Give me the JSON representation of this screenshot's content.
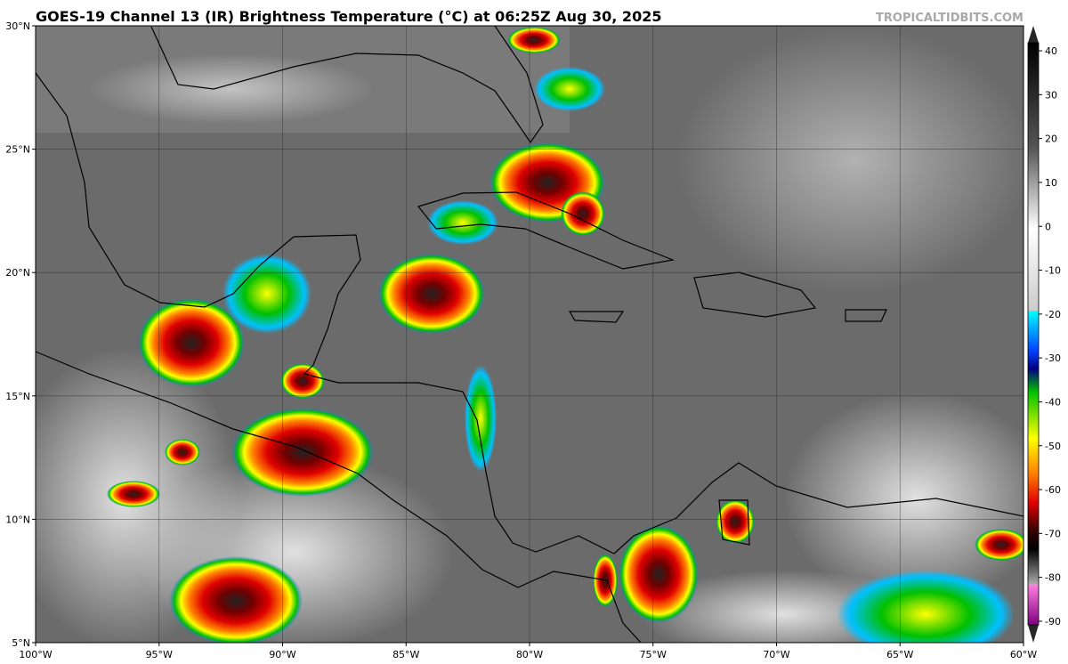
{
  "title": "GOES-19 Channel 13 (IR) Brightness Temperature (°C) at 06:25Z Aug 30, 2025",
  "watermark": "TROPICALTIDBITS.COM",
  "map": {
    "xlim": [
      -100,
      -60
    ],
    "ylim": [
      5,
      30
    ],
    "xticks": [
      {
        "value": -100,
        "label": "100°W"
      },
      {
        "value": -95,
        "label": "95°W"
      },
      {
        "value": -90,
        "label": "90°W"
      },
      {
        "value": -85,
        "label": "85°W"
      },
      {
        "value": -80,
        "label": "80°W"
      },
      {
        "value": -75,
        "label": "75°W"
      },
      {
        "value": -70,
        "label": "70°W"
      },
      {
        "value": -65,
        "label": "65°W"
      },
      {
        "value": -60,
        "label": "60°W"
      }
    ],
    "yticks": [
      {
        "value": 5,
        "label": "5°N"
      },
      {
        "value": 10,
        "label": "10°N"
      },
      {
        "value": 15,
        "label": "15°N"
      },
      {
        "value": 20,
        "label": "20°N"
      },
      {
        "value": 25,
        "label": "25°N"
      },
      {
        "value": 30,
        "label": "30°N"
      }
    ],
    "grid": true
  },
  "colorbar": {
    "lim": [
      -95,
      45
    ],
    "ticks": [
      40,
      30,
      20,
      10,
      0,
      -10,
      -20,
      -30,
      -40,
      -50,
      -60,
      -70,
      -80,
      -90
    ]
  }
}
